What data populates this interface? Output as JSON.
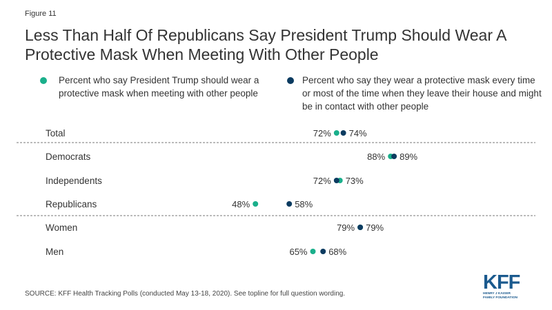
{
  "figure_label": "Figure 11",
  "title": "Less Than Half Of Republicans Say President Trump Should Wear A Protective Mask When Meeting With Other People",
  "source": "SOURCE: KFF Health Tracking Polls (conducted May 13-18, 2020). See topline for full question wording.",
  "logo": {
    "main": "KFF",
    "line1": "HENRY J KAISER",
    "line2": "FAMILY FOUNDATION"
  },
  "chart_data": {
    "type": "scatter",
    "categories": [
      "Total",
      "Democrats",
      "Independents",
      "Republicans",
      "Women",
      "Men"
    ],
    "series": [
      {
        "name": "Percent who say President Trump should wear a protective mask when meeting with other people",
        "color": "#1aaf8b",
        "values": [
          72,
          88,
          73,
          48,
          79,
          65
        ],
        "labels": [
          "72%",
          "88%",
          "73%",
          "48%",
          "79%",
          "65%"
        ]
      },
      {
        "name": "Percent who say they wear a protective mask every time or most of the time when they leave their house and might be in contact with other people",
        "color": "#0b3b60",
        "values": [
          74,
          89,
          72,
          58,
          79,
          68
        ],
        "labels": [
          "74%",
          "89%",
          "72%",
          "58%",
          "79%",
          "68%"
        ]
      }
    ],
    "xlim": [
      0,
      100
    ],
    "grid": false,
    "legend_position": "top"
  }
}
